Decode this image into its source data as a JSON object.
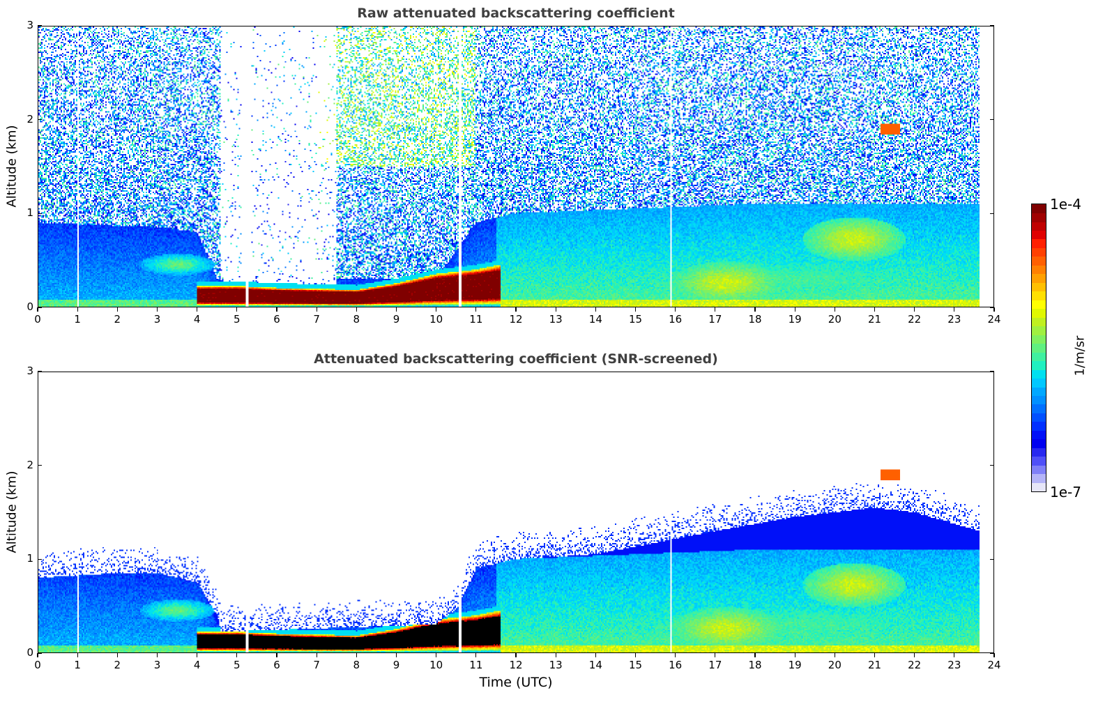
{
  "chart_data": [
    {
      "type": "heatmap",
      "title": "Raw attenuated backscattering coefficient",
      "xlabel": "",
      "ylabel": "Altitude (km)",
      "xlim": [
        0,
        24
      ],
      "ylim": [
        0,
        3
      ],
      "x_ticks": [
        "0",
        "1",
        "2",
        "3",
        "4",
        "5",
        "6",
        "7",
        "8",
        "9",
        "10",
        "11",
        "12",
        "13",
        "14",
        "15",
        "16",
        "17",
        "18",
        "19",
        "20",
        "21",
        "22",
        "23",
        "24"
      ],
      "y_ticks": [
        "0",
        "1",
        "2",
        "3"
      ],
      "data_end_hour": 23.65,
      "screened": false,
      "features": {
        "noise_top_log10": -6.3,
        "boundary_layer_top_km": [
          [
            0,
            0.9
          ],
          [
            3,
            0.85
          ],
          [
            4,
            0.8
          ],
          [
            4.5,
            0.3
          ],
          [
            10,
            0.3
          ],
          [
            11,
            0.9
          ],
          [
            12,
            1.0
          ],
          [
            18,
            1.1
          ],
          [
            23.65,
            1.1
          ]
        ],
        "fog_layer": {
          "start_h": 4.0,
          "end_h": 11.6,
          "top_km": [
            [
              4,
              0.22
            ],
            [
              5,
              0.22
            ],
            [
              6,
              0.2
            ],
            [
              8,
              0.18
            ],
            [
              9,
              0.25
            ],
            [
              10,
              0.35
            ],
            [
              11,
              0.4
            ],
            [
              11.6,
              0.45
            ]
          ],
          "log10": -4.0
        },
        "aerosol_plumes": [
          {
            "center_h": 3.5,
            "center_km": 0.45,
            "width_h": 0.8,
            "height_km": 0.1,
            "log10": -5.5
          },
          {
            "center_h": 17.3,
            "center_km": 0.25,
            "width_h": 1.2,
            "height_km": 0.2,
            "log10": -5.2
          },
          {
            "center_h": 20.5,
            "center_km": 0.72,
            "width_h": 1.1,
            "height_km": 0.2,
            "log10": -5.2
          },
          {
            "center_h": 19.0,
            "center_km": 0.3,
            "width_h": 4.5,
            "height_km": 0.25,
            "log10": -5.6
          }
        ],
        "cirrus_spot": {
          "hour": 21.4,
          "km": 1.9,
          "log10": -4.6
        },
        "gaps_h": [
          1.0,
          5.25,
          10.6,
          15.9
        ]
      }
    },
    {
      "type": "heatmap",
      "title": "Attenuated backscattering coefficient (SNR-screened)",
      "xlabel": "Time (UTC)",
      "ylabel": "Altitude (km)",
      "xlim": [
        0,
        24
      ],
      "ylim": [
        0,
        3
      ],
      "x_ticks": [
        "0",
        "1",
        "2",
        "3",
        "4",
        "5",
        "6",
        "7",
        "8",
        "9",
        "10",
        "11",
        "12",
        "13",
        "14",
        "15",
        "16",
        "17",
        "18",
        "19",
        "20",
        "21",
        "22",
        "23",
        "24"
      ],
      "y_ticks": [
        "0",
        "1",
        "2",
        "3"
      ],
      "data_end_hour": 23.65,
      "screened": true,
      "features": {
        "screen_top_km": [
          [
            0,
            0.8
          ],
          [
            2,
            0.85
          ],
          [
            3,
            0.85
          ],
          [
            4,
            0.75
          ],
          [
            4.5,
            0.4
          ],
          [
            4.6,
            0.22
          ],
          [
            10,
            0.3
          ],
          [
            10.6,
            0.5
          ],
          [
            11,
            0.9
          ],
          [
            12,
            1.0
          ],
          [
            14,
            1.05
          ],
          [
            17,
            1.3
          ],
          [
            19,
            1.45
          ],
          [
            21,
            1.55
          ],
          [
            22,
            1.5
          ],
          [
            23.65,
            1.3
          ]
        ],
        "fog_core_color": "black",
        "cirrus_spot": {
          "hour": 21.4,
          "km": 1.9,
          "log10": -4.6
        }
      }
    }
  ],
  "colorbar": {
    "label": "1/m/sr",
    "min_label": "1e-7",
    "max_label": "1e-4",
    "min_log10": -7,
    "max_log10": -4,
    "colors": [
      "#e6e6f8",
      "#b4b4f8",
      "#8080f8",
      "#5050f8",
      "#2828f0",
      "#0000f0",
      "#0010f8",
      "#0030ff",
      "#0050ff",
      "#0070ff",
      "#0090ff",
      "#00a8ff",
      "#00c8ff",
      "#00e0f0",
      "#20f0c0",
      "#40f0a0",
      "#60f080",
      "#80f060",
      "#a0f040",
      "#c0f020",
      "#e0f800",
      "#ffff00",
      "#ffe000",
      "#ffc000",
      "#ffa000",
      "#ff8000",
      "#ff6000",
      "#ff4000",
      "#ff2000",
      "#e00000",
      "#c00000",
      "#a00000",
      "#800000"
    ]
  }
}
